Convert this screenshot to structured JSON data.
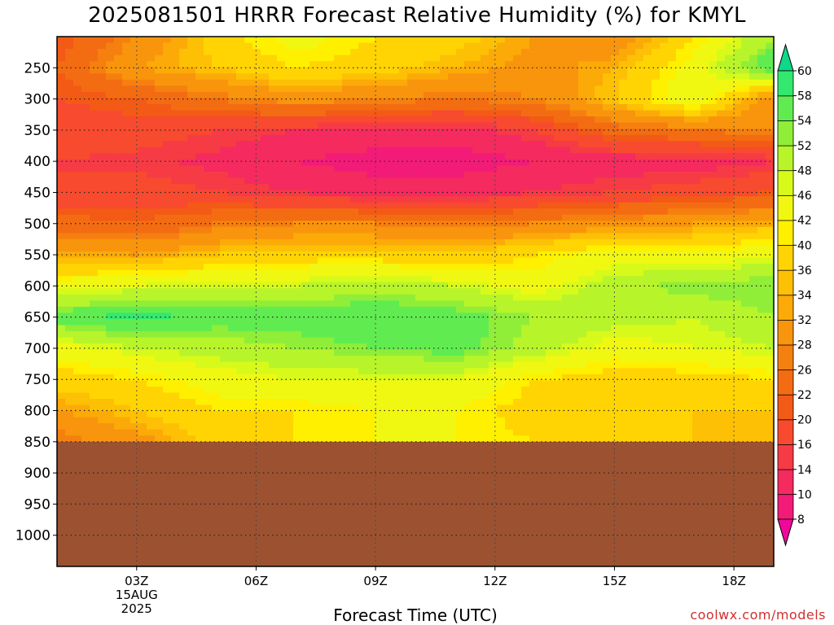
{
  "chart_data": {
    "type": "heatmap",
    "title": "2025081501 HRRR Forecast Relative Humidity (%) for KMYL",
    "xlabel": "Forecast Time (UTC)",
    "ylabel": "",
    "x_ticks": [
      "03Z",
      "06Z",
      "09Z",
      "12Z",
      "15Z",
      "18Z"
    ],
    "x_start_label": [
      "15AUG",
      "2025"
    ],
    "y_ticks": [
      250,
      300,
      350,
      400,
      450,
      500,
      550,
      600,
      650,
      700,
      750,
      800,
      850,
      900,
      950,
      1000
    ],
    "y_axis": "pressure (hPa), top ≈ 200, bottom ≈ 1050",
    "x_range_hours": [
      1,
      19
    ],
    "below_ground_from_hPa": 850,
    "grid": true,
    "colorbar": {
      "levels": [
        8,
        10,
        14,
        16,
        20,
        22,
        26,
        28,
        32,
        34,
        36,
        40,
        42,
        46,
        48,
        52,
        54,
        58,
        60
      ],
      "colors": [
        "#f0089a",
        "#f31b78",
        "#f52a5e",
        "#f63b45",
        "#f84a2e",
        "#f35a16",
        "#f36c12",
        "#f5800f",
        "#f8950c",
        "#fbaa08",
        "#fdc005",
        "#ffd402",
        "#fff000",
        "#f0f812",
        "#d8fa1a",
        "#b8f42a",
        "#90ee38",
        "#60ec50",
        "#33e86e",
        "#0ed88a"
      ],
      "extend": "both"
    },
    "pressure_levels": [
      200,
      250,
      300,
      350,
      400,
      450,
      500,
      550,
      600,
      650,
      700,
      750,
      800,
      850
    ],
    "forecast_hours": [
      1,
      3,
      5,
      7,
      9,
      11,
      13,
      15,
      17,
      19
    ],
    "rh_values": [
      [
        20,
        28,
        38,
        44,
        40,
        38,
        32,
        28,
        40,
        52
      ],
      [
        22,
        32,
        36,
        40,
        38,
        34,
        30,
        34,
        44,
        58
      ],
      [
        20,
        22,
        26,
        30,
        28,
        26,
        28,
        36,
        46,
        28
      ],
      [
        18,
        18,
        16,
        14,
        13,
        12,
        16,
        24,
        26,
        28
      ],
      [
        16,
        15,
        13,
        10,
        8,
        8,
        10,
        12,
        12,
        14
      ],
      [
        16,
        18,
        16,
        14,
        12,
        12,
        14,
        16,
        18,
        20
      ],
      [
        24,
        22,
        26,
        28,
        28,
        26,
        28,
        30,
        32,
        34
      ],
      [
        34,
        32,
        36,
        38,
        38,
        36,
        40,
        44,
        42,
        46
      ],
      [
        44,
        46,
        48,
        48,
        50,
        48,
        44,
        50,
        54,
        54
      ],
      [
        56,
        60,
        56,
        56,
        58,
        56,
        52,
        50,
        48,
        52
      ],
      [
        44,
        48,
        50,
        52,
        54,
        56,
        50,
        44,
        46,
        48
      ],
      [
        38,
        40,
        44,
        46,
        46,
        46,
        40,
        38,
        38,
        40
      ],
      [
        32,
        36,
        40,
        40,
        42,
        42,
        38,
        36,
        36,
        36
      ],
      [
        26,
        30,
        38,
        40,
        42,
        42,
        40,
        38,
        36,
        34
      ]
    ],
    "ground_color": "#9c5230"
  },
  "credit": "coolwx.com/models"
}
